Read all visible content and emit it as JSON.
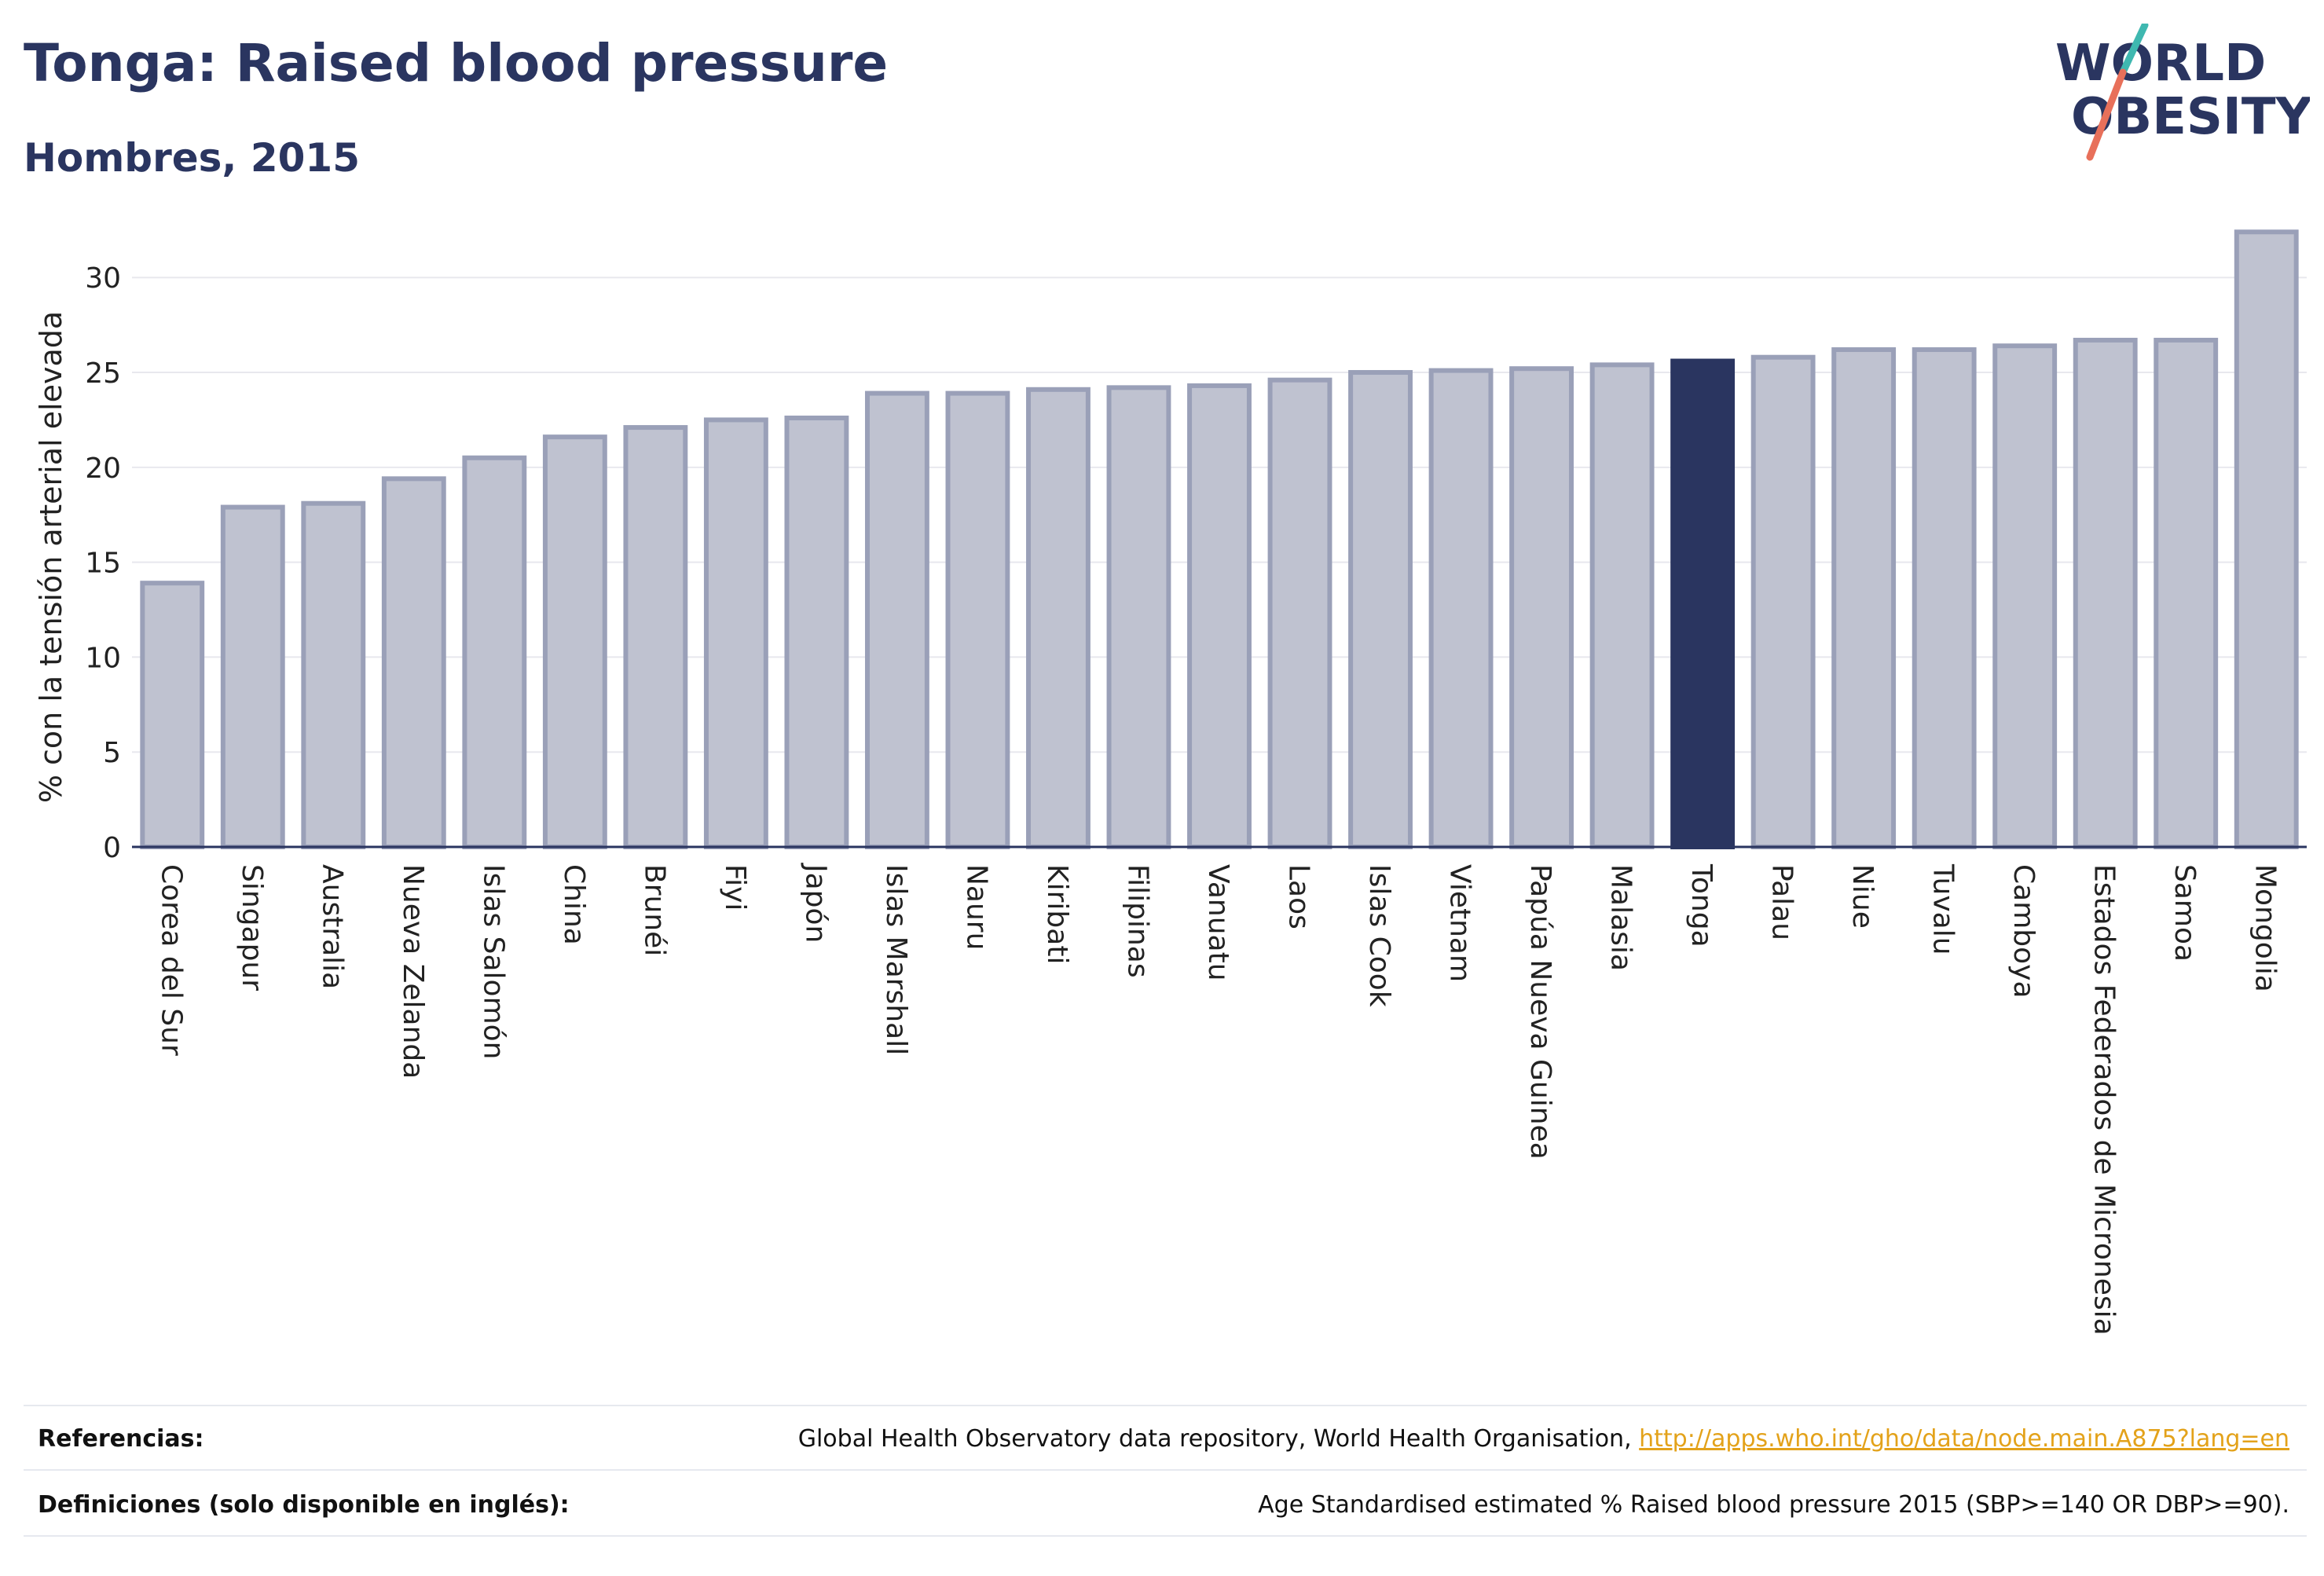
{
  "header": {
    "title": "Tonga: Raised blood pressure",
    "subtitle": "Hombres, 2015"
  },
  "logo": {
    "line1": "WORLD",
    "line2": "OBESITY",
    "colors": {
      "text": "#2a3560",
      "slash_top": "#3fb8b0",
      "slash_bottom": "#e8705a"
    }
  },
  "colors": {
    "bar_fill": "#bfc2d0",
    "bar_stroke": "#9aa0b8",
    "highlight": "#2a3560",
    "grid": "#e8e8ee",
    "axis": "#2a3560"
  },
  "chart_data": {
    "type": "bar",
    "title": "",
    "xlabel": "",
    "ylabel": "% con la tensión arterial elevada",
    "ylim": [
      0,
      32.7
    ],
    "yticks": [
      0,
      5,
      10,
      15,
      20,
      25,
      30
    ],
    "grid": true,
    "highlight": "Tonga",
    "categories": [
      "Corea del Sur",
      "Singapur",
      "Australia",
      "Nueva Zelanda",
      "Islas Salomón",
      "China",
      "Brunéi",
      "Fiyi",
      "Japón",
      "Islas Marshall",
      "Nauru",
      "Kiribati",
      "Filipinas",
      "Vanuatu",
      "Laos",
      "Islas Cook",
      "Vietnam",
      "Papúa Nueva Guinea",
      "Malasia",
      "Tonga",
      "Palau",
      "Niue",
      "Tuvalu",
      "Camboya",
      "Estados Federados de Micronesia",
      "Samoa",
      "Mongolia"
    ],
    "values": [
      13.9,
      17.9,
      18.1,
      19.4,
      20.5,
      21.6,
      22.1,
      22.5,
      22.6,
      23.9,
      23.9,
      24.1,
      24.2,
      24.3,
      24.6,
      25.0,
      25.1,
      25.2,
      25.4,
      25.6,
      25.8,
      26.2,
      26.2,
      26.4,
      26.7,
      26.7,
      32.4
    ]
  },
  "footer": {
    "references_label": "Referencias:",
    "references_text": "Global Health Observatory data repository, World Health Organisation, ",
    "references_link": "http://apps.who.int/gho/data/node.main.A875?lang=en",
    "definitions_label": "Definiciones (solo disponible en inglés):",
    "definitions_text": "Age Standardised estimated % Raised blood pressure 2015 (SBP>=140 OR DBP>=90)."
  }
}
